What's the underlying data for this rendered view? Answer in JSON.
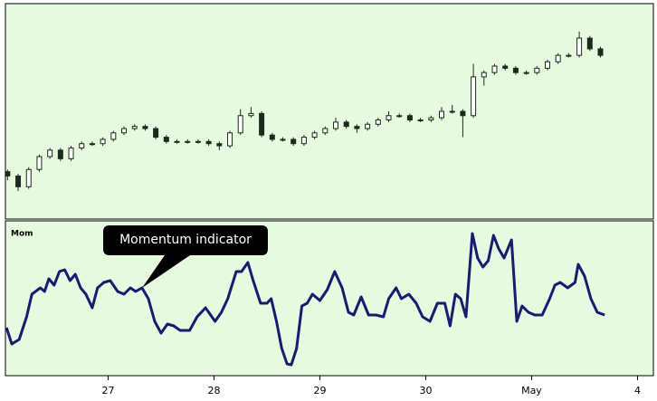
{
  "chart_data": [
    {
      "type": "candlestick",
      "background": "#e6fae0",
      "up_color": "#ffffff",
      "down_color": "#1c2a1c",
      "edge_color": "#1c2a1c",
      "xlim": [
        0.03,
        6.15
      ],
      "ylim": [
        0,
        100
      ],
      "x": [
        0.05,
        0.15,
        0.25,
        0.35,
        0.45,
        0.55,
        0.65,
        0.75,
        0.85,
        0.95,
        1.05,
        1.15,
        1.25,
        1.35,
        1.45,
        1.55,
        1.65,
        1.75,
        1.85,
        1.95,
        2.05,
        2.15,
        2.25,
        2.35,
        2.45,
        2.55,
        2.65,
        2.75,
        2.85,
        2.95,
        3.05,
        3.15,
        3.25,
        3.35,
        3.45,
        3.55,
        3.65,
        3.75,
        3.85,
        3.95,
        4.05,
        4.15,
        4.25,
        4.35,
        4.45,
        4.55,
        4.65,
        4.75,
        4.85,
        4.95,
        5.05,
        5.15,
        5.25,
        5.35,
        5.45,
        5.55,
        5.65
      ],
      "open": [
        22,
        20,
        15,
        23,
        29,
        32,
        28,
        33,
        35,
        35,
        37,
        40,
        42,
        43,
        42,
        38,
        36,
        36,
        36,
        36,
        35,
        34,
        40,
        48,
        49,
        39,
        37,
        37,
        35,
        38,
        40,
        42,
        45,
        43,
        42,
        44,
        46,
        48,
        48,
        46,
        46,
        47,
        50,
        50,
        48,
        66,
        68,
        71,
        70,
        68,
        68,
        70,
        73,
        76,
        76,
        84,
        79
      ],
      "high": [
        23,
        21,
        24,
        30,
        33,
        33,
        34,
        36,
        36,
        38,
        41,
        43,
        44,
        44,
        43,
        39,
        37,
        37,
        37,
        37,
        36,
        41,
        51,
        52,
        50,
        40,
        38,
        38,
        39,
        41,
        43,
        47,
        46,
        44,
        45,
        47,
        50,
        49,
        49,
        47,
        48,
        52,
        53,
        51,
        72,
        69,
        72,
        72,
        71,
        69,
        71,
        74,
        77,
        77,
        87,
        85,
        80
      ],
      "low": [
        18,
        13,
        14,
        22,
        28,
        27,
        27,
        32,
        34,
        34,
        36,
        39,
        41,
        41,
        37,
        35,
        35,
        35,
        35,
        34,
        32,
        33,
        39,
        47,
        38,
        36,
        36,
        34,
        34,
        37,
        39,
        41,
        42,
        40,
        41,
        43,
        45,
        47,
        45,
        45,
        45,
        46,
        49,
        38,
        47,
        62,
        67,
        69,
        67,
        67,
        67,
        69,
        72,
        75,
        75,
        78,
        75
      ],
      "close": [
        20,
        15,
        23,
        29,
        32,
        28,
        33,
        35,
        35,
        37,
        40,
        42,
        43,
        42,
        38,
        36,
        36,
        36,
        36,
        35,
        34,
        40,
        48,
        49,
        39,
        37,
        37,
        35,
        38,
        40,
        42,
        45,
        43,
        42,
        44,
        46,
        48,
        48,
        46,
        46,
        47,
        50,
        50,
        48,
        66,
        68,
        71,
        70,
        68,
        68,
        70,
        73,
        76,
        76,
        84,
        79,
        76
      ]
    },
    {
      "type": "line",
      "title": "Mom",
      "annotation": "Momentum indicator",
      "background": "#e6fae0",
      "color": "#1a1a6e",
      "xlim": [
        0.03,
        6.15
      ],
      "ylim": [
        0,
        171
      ],
      "xticks": [
        {
          "value": 1,
          "label": "27"
        },
        {
          "value": 2,
          "label": "28"
        },
        {
          "value": 3,
          "label": "29"
        },
        {
          "value": 4,
          "label": "30"
        },
        {
          "value": 5,
          "label": "May"
        },
        {
          "value": 6,
          "label": "4"
        }
      ],
      "x": [
        0.04,
        0.09,
        0.16,
        0.23,
        0.28,
        0.36,
        0.4,
        0.44,
        0.49,
        0.54,
        0.59,
        0.64,
        0.69,
        0.74,
        0.79,
        0.85,
        0.9,
        0.96,
        1.02,
        1.09,
        1.15,
        1.21,
        1.26,
        1.32,
        1.38,
        1.44,
        1.5,
        1.56,
        1.62,
        1.68,
        1.77,
        1.84,
        1.92,
        2.01,
        2.07,
        2.13,
        2.21,
        2.26,
        2.32,
        2.37,
        2.44,
        2.5,
        2.54,
        2.59,
        2.64,
        2.69,
        2.73,
        2.78,
        2.83,
        2.88,
        2.93,
        3.0,
        3.07,
        3.14,
        3.21,
        3.27,
        3.32,
        3.39,
        3.46,
        3.53,
        3.6,
        3.65,
        3.72,
        3.77,
        3.84,
        3.91,
        3.97,
        4.04,
        4.11,
        4.18,
        4.23,
        4.28,
        4.33,
        4.38,
        4.44,
        4.49,
        4.54,
        4.59,
        4.64,
        4.69,
        4.74,
        4.81,
        4.86,
        4.91,
        4.97,
        5.03,
        5.1,
        5.17,
        5.22,
        5.27,
        5.34,
        5.41,
        5.44,
        5.5,
        5.56,
        5.62,
        5.69
      ],
      "values": [
        53,
        35,
        40,
        65,
        90,
        97,
        93,
        107,
        100,
        115,
        117,
        105,
        112,
        97,
        90,
        75,
        97,
        103,
        105,
        93,
        90,
        97,
        93,
        97,
        85,
        60,
        47,
        57,
        55,
        50,
        50,
        65,
        75,
        60,
        70,
        85,
        115,
        115,
        125,
        105,
        80,
        80,
        85,
        60,
        30,
        13,
        12,
        30,
        77,
        80,
        90,
        83,
        95,
        115,
        97,
        70,
        67,
        87,
        67,
        67,
        65,
        85,
        97,
        85,
        90,
        80,
        65,
        60,
        80,
        80,
        55,
        90,
        85,
        65,
        157,
        130,
        120,
        127,
        155,
        140,
        130,
        150,
        60,
        77,
        70,
        67,
        67,
        85,
        100,
        103,
        97,
        103,
        123,
        110,
        85,
        70,
        67
      ]
    }
  ]
}
